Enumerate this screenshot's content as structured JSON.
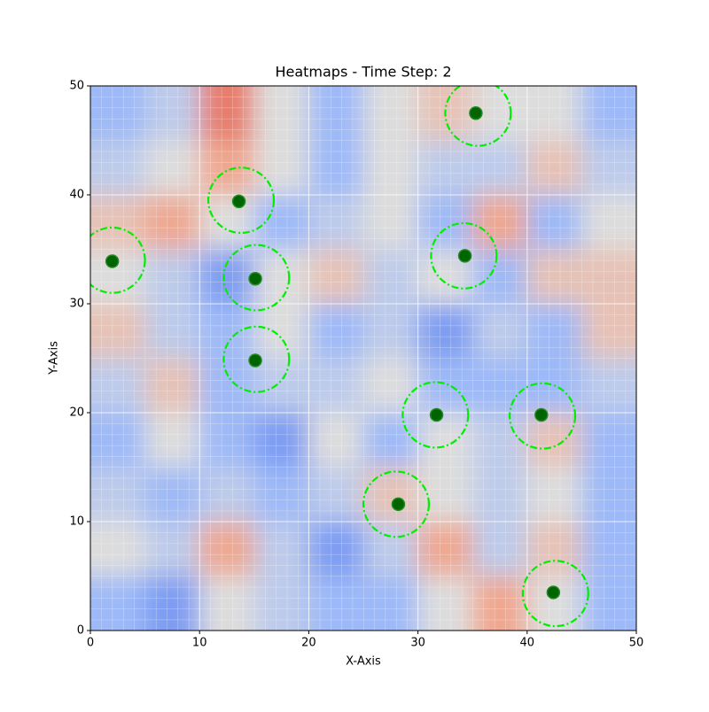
{
  "chart_data": {
    "type": "heatmap",
    "title": "Heatmaps - Time Step: 2",
    "x_label": "X-Axis",
    "y_label": "Y-Axis",
    "xlim": [
      0,
      50
    ],
    "ylim": [
      0,
      50
    ],
    "xticks": [
      0,
      10,
      20,
      30,
      40,
      50
    ],
    "yticks": [
      0,
      10,
      20,
      30,
      40,
      50
    ],
    "z": [
      [
        0.3,
        0.4,
        0.8,
        0.5,
        0.3,
        0.5,
        0.6,
        0.5,
        0.5,
        0.3
      ],
      [
        0.4,
        0.5,
        0.7,
        0.5,
        0.3,
        0.5,
        0.4,
        0.4,
        0.6,
        0.4
      ],
      [
        0.6,
        0.7,
        0.5,
        0.3,
        0.4,
        0.5,
        0.3,
        0.7,
        0.3,
        0.5
      ],
      [
        0.5,
        0.4,
        0.2,
        0.5,
        0.6,
        0.4,
        0.5,
        0.3,
        0.6,
        0.6
      ],
      [
        0.6,
        0.4,
        0.3,
        0.5,
        0.3,
        0.4,
        0.2,
        0.4,
        0.3,
        0.6
      ],
      [
        0.4,
        0.6,
        0.3,
        0.4,
        0.4,
        0.5,
        0.3,
        0.3,
        0.3,
        0.4
      ],
      [
        0.3,
        0.5,
        0.3,
        0.2,
        0.5,
        0.3,
        0.5,
        0.4,
        0.6,
        0.3
      ],
      [
        0.4,
        0.3,
        0.4,
        0.3,
        0.4,
        0.6,
        0.5,
        0.4,
        0.5,
        0.3
      ],
      [
        0.5,
        0.4,
        0.7,
        0.4,
        0.2,
        0.4,
        0.7,
        0.4,
        0.6,
        0.3
      ],
      [
        0.3,
        0.2,
        0.5,
        0.4,
        0.3,
        0.3,
        0.5,
        0.7,
        0.5,
        0.3
      ]
    ],
    "points": {
      "color": "#006400",
      "edge_color": "#228b22",
      "x": [
        35.3,
        13.6,
        2.0,
        15.1,
        34.3,
        15.1,
        31.7,
        41.3,
        28.2,
        42.4
      ],
      "y": [
        47.5,
        39.4,
        33.9,
        32.3,
        34.4,
        24.8,
        19.8,
        19.8,
        11.6,
        3.5
      ]
    },
    "circles": {
      "color": "#00ee00",
      "radius": 3,
      "x": [
        35.5,
        13.8,
        2.0,
        15.2,
        34.2,
        15.2,
        31.6,
        41.4,
        28.0,
        42.6
      ],
      "y": [
        47.5,
        39.5,
        34.0,
        32.4,
        34.4,
        24.9,
        19.8,
        19.7,
        11.6,
        3.4
      ]
    }
  }
}
